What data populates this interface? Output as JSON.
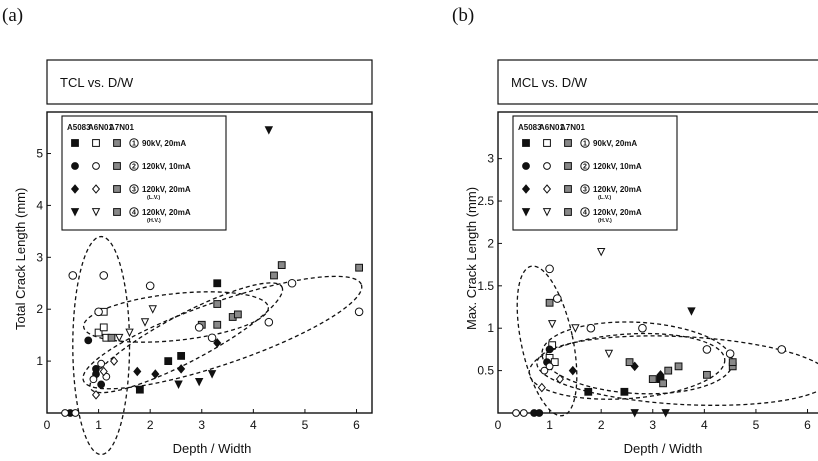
{
  "panels": [
    {
      "tag": "(a)",
      "title": "TCL vs. D/W",
      "xlabel": "Depth / Width",
      "ylabel": "Total Crack Length (mm)"
    },
    {
      "tag": "(b)",
      "title": "MCL vs. D/W",
      "xlabel": "Depth / Width",
      "ylabel": "Max. Crack Length (mm)"
    }
  ],
  "legend": {
    "columns": [
      "A5083",
      "A6N01",
      "A7N01"
    ],
    "rows": [
      {
        "num": "1",
        "label": "90kV, 20mA",
        "note": ""
      },
      {
        "num": "2",
        "label": "120kV, 10mA",
        "note": ""
      },
      {
        "num": "3",
        "label": "120kV, 20mA",
        "note": "(L.V.)"
      },
      {
        "num": "4",
        "label": "120kV, 20mA",
        "note": "(H.V.)"
      }
    ]
  },
  "chart_data": [
    {
      "type": "scatter",
      "title": "TCL vs. D/W",
      "xlabel": "Depth / Width",
      "ylabel": "Total Crack Length (mm)",
      "xlim": [
        0,
        6.3
      ],
      "ylim": [
        0,
        5.8
      ],
      "xticks": [
        "0",
        "1",
        "2",
        "3",
        "4",
        "5",
        "6"
      ],
      "yticks": [
        "1",
        "2",
        "3",
        "4",
        "5"
      ],
      "series": [
        {
          "name": "A5083 90kV, 20mA",
          "marker": "square-filled",
          "points": [
            [
              1.8,
              0.45
            ],
            [
              2.35,
              1.0
            ],
            [
              2.6,
              1.1
            ],
            [
              3.3,
              2.5
            ]
          ]
        },
        {
          "name": "A6N01 90kV, 20mA",
          "marker": "square-open",
          "points": [
            [
              1.0,
              1.55
            ],
            [
              1.1,
              1.95
            ],
            [
              1.1,
              1.65
            ],
            [
              1.15,
              1.45
            ]
          ]
        },
        {
          "name": "A7N01 90kV, 20mA",
          "marker": "square-hatched",
          "points": [
            [
              3.0,
              1.7
            ],
            [
              3.3,
              1.7
            ],
            [
              3.6,
              1.85
            ],
            [
              3.7,
              1.9
            ]
          ]
        },
        {
          "name": "A5083 120kV, 10mA",
          "marker": "circle-filled",
          "points": [
            [
              0.45,
              0.0
            ],
            [
              0.8,
              1.4
            ],
            [
              0.95,
              0.85
            ],
            [
              0.95,
              0.75
            ],
            [
              1.05,
              0.55
            ]
          ]
        },
        {
          "name": "A6N01 120kV, 10mA",
          "marker": "circle-open",
          "points": [
            [
              0.35,
              0.0
            ],
            [
              0.55,
              0.0
            ],
            [
              0.9,
              0.65
            ],
            [
              1.05,
              0.95
            ],
            [
              1.15,
              0.7
            ]
          ]
        },
        {
          "name": "A7N01 120kV, 10mA",
          "marker": "circle-numbered",
          "points": [
            [
              0.5,
              2.65
            ],
            [
              1.1,
              2.65
            ],
            [
              2.0,
              2.45
            ],
            [
              1.0,
              1.95
            ],
            [
              2.95,
              1.65
            ],
            [
              3.2,
              1.45
            ],
            [
              4.3,
              1.75
            ],
            [
              4.75,
              2.5
            ],
            [
              6.05,
              1.95
            ]
          ]
        },
        {
          "name": "A5083 120kV, 20mA (L.V.)",
          "marker": "diamond-filled",
          "points": [
            [
              1.75,
              0.8
            ],
            [
              2.1,
              0.75
            ],
            [
              2.6,
              0.85
            ],
            [
              3.3,
              1.35
            ]
          ]
        },
        {
          "name": "A6N01 120kV, 20mA (L.V.)",
          "marker": "diamond-open",
          "points": [
            [
              0.95,
              0.35
            ],
            [
              1.1,
              0.8
            ],
            [
              1.3,
              1.0
            ]
          ]
        },
        {
          "name": "A7N01 120kV, 20mA (L.V.)",
          "marker": "square-hatched",
          "points": [
            [
              1.25,
              1.45
            ],
            [
              3.3,
              2.1
            ],
            [
              4.4,
              2.65
            ]
          ]
        },
        {
          "name": "A5083 120kV, 20mA (H.V.)",
          "marker": "triangle-filled",
          "points": [
            [
              2.55,
              0.55
            ],
            [
              2.95,
              0.6
            ],
            [
              3.2,
              0.75
            ],
            [
              4.3,
              5.45
            ]
          ]
        },
        {
          "name": "A6N01 120kV, 20mA (H.V.)",
          "marker": "triangle-open",
          "points": [
            [
              1.4,
              1.45
            ],
            [
              1.6,
              1.55
            ],
            [
              1.9,
              1.75
            ],
            [
              2.05,
              2.0
            ]
          ]
        },
        {
          "name": "A7N01 120kV, 20mA (H.V.)",
          "marker": "square-hatched",
          "points": [
            [
              4.55,
              2.85
            ],
            [
              6.05,
              2.8
            ]
          ]
        }
      ],
      "ellipses": [
        {
          "cx": 1.05,
          "cy": 1.3,
          "rx": 0.55,
          "ry": 2.1,
          "angle": 0
        },
        {
          "cx": 2.5,
          "cy": 1.85,
          "rx": 1.8,
          "ry": 0.45,
          "angle": 6
        },
        {
          "cx": 3.4,
          "cy": 1.55,
          "rx": 2.85,
          "ry": 0.6,
          "angle": 19
        },
        {
          "cx": 2.7,
          "cy": 1.45,
          "rx": 2.1,
          "ry": 0.45,
          "angle": 28
        }
      ]
    },
    {
      "type": "scatter",
      "title": "MCL vs. D/W",
      "xlabel": "Depth / Width",
      "ylabel": "Max. Crack Length (mm)",
      "xlim": [
        0,
        6.3
      ],
      "ylim": [
        0,
        3.55
      ],
      "xticks": [
        "0",
        "1",
        "2",
        "3",
        "4",
        "5",
        "6"
      ],
      "yticks": [
        "0.5",
        "1",
        "1.5",
        "2",
        "2.5",
        "3"
      ],
      "series": [
        {
          "name": "A5083 90kV, 20mA",
          "marker": "square-filled",
          "points": [
            [
              1.75,
              0.25
            ],
            [
              2.45,
              0.25
            ],
            [
              3.15,
              0.4
            ]
          ]
        },
        {
          "name": "A6N01 90kV, 20mA",
          "marker": "square-open",
          "points": [
            [
              1.0,
              0.65
            ],
            [
              1.05,
              0.8
            ],
            [
              1.1,
              0.6
            ]
          ]
        },
        {
          "name": "A7N01 90kV, 20mA",
          "marker": "square-hatched",
          "points": [
            [
              1.0,
              1.3
            ],
            [
              3.2,
              0.35
            ],
            [
              3.3,
              0.5
            ],
            [
              3.5,
              0.55
            ]
          ]
        },
        {
          "name": "A5083 120kV, 10mA",
          "marker": "circle-filled",
          "points": [
            [
              0.7,
              0.0
            ],
            [
              0.8,
              0.0
            ],
            [
              0.95,
              0.6
            ],
            [
              1.0,
              0.75
            ]
          ]
        },
        {
          "name": "A6N01 120kV, 10mA",
          "marker": "circle-open",
          "points": [
            [
              0.35,
              0.0
            ],
            [
              0.5,
              0.0
            ],
            [
              0.9,
              0.5
            ],
            [
              1.0,
              0.55
            ]
          ]
        },
        {
          "name": "A7N01 120kV, 10mA",
          "marker": "circle-numbered",
          "points": [
            [
              1.0,
              1.7
            ],
            [
              1.15,
              1.35
            ],
            [
              1.8,
              1.0
            ],
            [
              2.8,
              1.0
            ],
            [
              4.05,
              0.75
            ],
            [
              4.5,
              0.7
            ],
            [
              5.5,
              0.75
            ],
            [
              6.3,
              0.25
            ]
          ]
        },
        {
          "name": "A5083 120kV, 20mA (L.V.)",
          "marker": "diamond-filled",
          "points": [
            [
              1.45,
              0.5
            ],
            [
              2.65,
              0.55
            ],
            [
              3.15,
              0.45
            ]
          ]
        },
        {
          "name": "A6N01 120kV, 20mA (L.V.)",
          "marker": "diamond-open",
          "points": [
            [
              0.85,
              0.3
            ],
            [
              1.2,
              0.4
            ]
          ]
        },
        {
          "name": "A7N01 120kV, 20mA (L.V.)",
          "marker": "square-hatched",
          "points": [
            [
              2.55,
              0.6
            ],
            [
              3.0,
              0.4
            ],
            [
              4.05,
              0.45
            ],
            [
              4.55,
              0.55
            ]
          ]
        },
        {
          "name": "A5083 120kV, 20mA (H.V.)",
          "marker": "triangle-filled",
          "points": [
            [
              2.65,
              0.0
            ],
            [
              3.25,
              0.0
            ],
            [
              3.75,
              1.2
            ]
          ]
        },
        {
          "name": "A6N01 120kV, 20mA (H.V.)",
          "marker": "triangle-open",
          "points": [
            [
              1.05,
              1.05
            ],
            [
              1.5,
              1.0
            ],
            [
              2.0,
              1.9
            ],
            [
              2.15,
              0.7
            ]
          ]
        },
        {
          "name": "A7N01 120kV, 20mA (H.V.)",
          "marker": "square-hatched",
          "points": [
            [
              4.55,
              0.6
            ]
          ]
        }
      ],
      "ellipses": [
        {
          "cx": 0.95,
          "cy": 0.85,
          "rx": 0.5,
          "ry": 0.9,
          "angle": 12
        },
        {
          "cx": 2.7,
          "cy": 0.65,
          "rx": 1.85,
          "ry": 0.42,
          "angle": -3
        },
        {
          "cx": 3.6,
          "cy": 0.5,
          "rx": 2.85,
          "ry": 0.4,
          "angle": -3
        },
        {
          "cx": 2.5,
          "cy": 0.55,
          "rx": 1.9,
          "ry": 0.38,
          "angle": 4
        }
      ]
    }
  ]
}
